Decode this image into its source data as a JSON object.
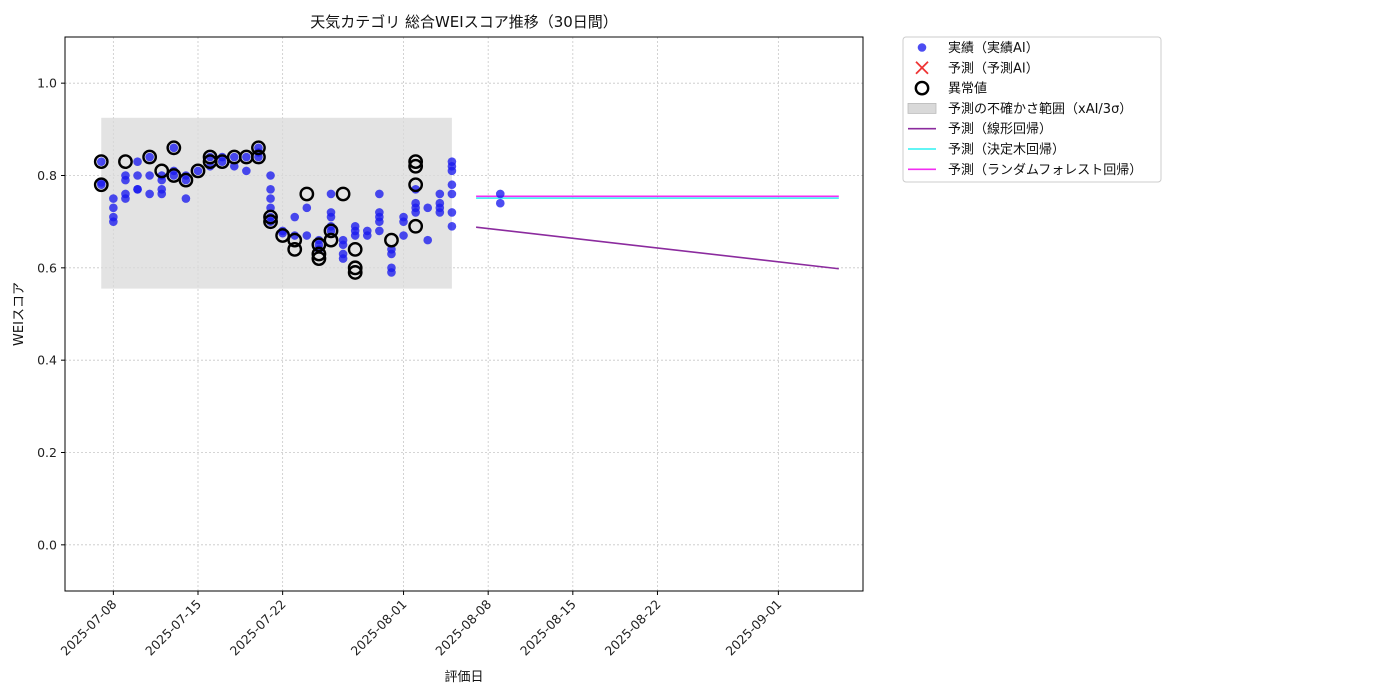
{
  "chart_data": {
    "type": "scatter",
    "title": "天気カテゴリ 総合WEIスコア推移（30日間）",
    "xlabel": "評価日",
    "ylabel": "WEIスコア",
    "xlim": [
      "2025-07-04",
      "2025-09-08"
    ],
    "ylim": [
      -0.1,
      1.1
    ],
    "x_ticks": [
      "2025-07-08",
      "2025-07-15",
      "2025-07-22",
      "2025-08-01",
      "2025-08-08",
      "2025-08-15",
      "2025-08-22",
      "2025-09-01"
    ],
    "y_ticks": [
      0.0,
      0.2,
      0.4,
      0.6,
      0.8,
      1.0
    ],
    "y_tick_labels": [
      "0.0",
      "0.2",
      "0.4",
      "0.6",
      "0.8",
      "1.0"
    ],
    "grid": true,
    "legend_position": "outside-right-top",
    "colors": {
      "actual": "#1a1aee",
      "predicted": "#ee3333",
      "outlier": "#000000",
      "band": "#d9d9d9",
      "linear": "#8b2b9e",
      "tree": "#2ef2f2",
      "forest": "#f22ef2"
    },
    "legend": [
      {
        "key": "actual",
        "label": "実績（実績AI）",
        "marker": "dot"
      },
      {
        "key": "predicted",
        "label": "予測（予測AI）",
        "marker": "cross"
      },
      {
        "key": "outlier",
        "label": "異常値",
        "marker": "ring"
      },
      {
        "key": "band",
        "label": "予測の不確かさ範囲（xAI/3σ）",
        "marker": "patch"
      },
      {
        "key": "linear",
        "label": "予測（線形回帰）",
        "marker": "line"
      },
      {
        "key": "tree",
        "label": "予測（決定木回帰）",
        "marker": "line"
      },
      {
        "key": "forest",
        "label": "予測（ランダムフォレスト回帰）",
        "marker": "line"
      }
    ],
    "uncertainty_band": {
      "x_start": "2025-07-07",
      "x_end": "2025-08-05",
      "y_low": 0.555,
      "y_high": 0.925
    },
    "series": [
      {
        "name": "実績（実績AI）",
        "kind": "scatter",
        "points": [
          [
            "2025-07-07",
            0.78
          ],
          [
            "2025-07-07",
            0.785
          ],
          [
            "2025-07-07",
            0.83
          ],
          [
            "2025-07-08",
            0.75
          ],
          [
            "2025-07-08",
            0.7
          ],
          [
            "2025-07-08",
            0.71
          ],
          [
            "2025-07-08",
            0.73
          ],
          [
            "2025-07-09",
            0.79
          ],
          [
            "2025-07-09",
            0.8
          ],
          [
            "2025-07-09",
            0.75
          ],
          [
            "2025-07-09",
            0.76
          ],
          [
            "2025-07-10",
            0.77
          ],
          [
            "2025-07-10",
            0.8
          ],
          [
            "2025-07-10",
            0.83
          ],
          [
            "2025-07-10",
            0.77
          ],
          [
            "2025-07-11",
            0.76
          ],
          [
            "2025-07-11",
            0.8
          ],
          [
            "2025-07-11",
            0.84
          ],
          [
            "2025-07-12",
            0.77
          ],
          [
            "2025-07-12",
            0.76
          ],
          [
            "2025-07-12",
            0.79
          ],
          [
            "2025-07-12",
            0.8
          ],
          [
            "2025-07-13",
            0.81
          ],
          [
            "2025-07-13",
            0.86
          ],
          [
            "2025-07-13",
            0.8
          ],
          [
            "2025-07-14",
            0.75
          ],
          [
            "2025-07-14",
            0.79
          ],
          [
            "2025-07-14",
            0.8
          ],
          [
            "2025-07-15",
            0.81
          ],
          [
            "2025-07-16",
            0.82
          ],
          [
            "2025-07-16",
            0.84
          ],
          [
            "2025-07-17",
            0.83
          ],
          [
            "2025-07-17",
            0.84
          ],
          [
            "2025-07-18",
            0.82
          ],
          [
            "2025-07-18",
            0.84
          ],
          [
            "2025-07-19",
            0.84
          ],
          [
            "2025-07-19",
            0.81
          ],
          [
            "2025-07-20",
            0.84
          ],
          [
            "2025-07-20",
            0.86
          ],
          [
            "2025-07-20",
            0.85
          ],
          [
            "2025-07-21",
            0.8
          ],
          [
            "2025-07-21",
            0.77
          ],
          [
            "2025-07-21",
            0.75
          ],
          [
            "2025-07-21",
            0.73
          ],
          [
            "2025-07-21",
            0.71
          ],
          [
            "2025-07-21",
            0.7
          ],
          [
            "2025-07-22",
            0.675
          ],
          [
            "2025-07-22",
            0.68
          ],
          [
            "2025-07-23",
            0.71
          ],
          [
            "2025-07-23",
            0.67
          ],
          [
            "2025-07-24",
            0.73
          ],
          [
            "2025-07-24",
            0.67
          ],
          [
            "2025-07-25",
            0.65
          ],
          [
            "2025-07-25",
            0.64
          ],
          [
            "2025-07-25",
            0.66
          ],
          [
            "2025-07-26",
            0.68
          ],
          [
            "2025-07-26",
            0.69
          ],
          [
            "2025-07-26",
            0.71
          ],
          [
            "2025-07-26",
            0.72
          ],
          [
            "2025-07-26",
            0.76
          ],
          [
            "2025-07-27",
            0.62
          ],
          [
            "2025-07-27",
            0.63
          ],
          [
            "2025-07-27",
            0.65
          ],
          [
            "2025-07-27",
            0.66
          ],
          [
            "2025-07-28",
            0.67
          ],
          [
            "2025-07-28",
            0.68
          ],
          [
            "2025-07-28",
            0.69
          ],
          [
            "2025-07-29",
            0.68
          ],
          [
            "2025-07-29",
            0.67
          ],
          [
            "2025-07-30",
            0.68
          ],
          [
            "2025-07-30",
            0.7
          ],
          [
            "2025-07-30",
            0.71
          ],
          [
            "2025-07-30",
            0.72
          ],
          [
            "2025-07-30",
            0.76
          ],
          [
            "2025-07-31",
            0.6
          ],
          [
            "2025-07-31",
            0.59
          ],
          [
            "2025-07-31",
            0.63
          ],
          [
            "2025-07-31",
            0.64
          ],
          [
            "2025-08-01",
            0.67
          ],
          [
            "2025-08-01",
            0.7
          ],
          [
            "2025-08-01",
            0.71
          ],
          [
            "2025-08-02",
            0.72
          ],
          [
            "2025-08-02",
            0.73
          ],
          [
            "2025-08-02",
            0.74
          ],
          [
            "2025-08-02",
            0.77
          ],
          [
            "2025-08-03",
            0.66
          ],
          [
            "2025-08-03",
            0.73
          ],
          [
            "2025-08-04",
            0.72
          ],
          [
            "2025-08-04",
            0.73
          ],
          [
            "2025-08-04",
            0.74
          ],
          [
            "2025-08-04",
            0.76
          ],
          [
            "2025-08-05",
            0.69
          ],
          [
            "2025-08-05",
            0.72
          ],
          [
            "2025-08-05",
            0.76
          ],
          [
            "2025-08-05",
            0.78
          ],
          [
            "2025-08-05",
            0.81
          ],
          [
            "2025-08-05",
            0.82
          ],
          [
            "2025-08-05",
            0.83
          ],
          [
            "2025-08-09",
            0.76
          ],
          [
            "2025-08-09",
            0.74
          ]
        ]
      },
      {
        "name": "異常値",
        "kind": "outlier",
        "points": [
          [
            "2025-07-07",
            0.78
          ],
          [
            "2025-07-07",
            0.83
          ],
          [
            "2025-07-09",
            0.83
          ],
          [
            "2025-07-11",
            0.84
          ],
          [
            "2025-07-12",
            0.81
          ],
          [
            "2025-07-13",
            0.86
          ],
          [
            "2025-07-13",
            0.8
          ],
          [
            "2025-07-14",
            0.79
          ],
          [
            "2025-07-15",
            0.81
          ],
          [
            "2025-07-16",
            0.84
          ],
          [
            "2025-07-16",
            0.83
          ],
          [
            "2025-07-17",
            0.83
          ],
          [
            "2025-07-18",
            0.84
          ],
          [
            "2025-07-19",
            0.84
          ],
          [
            "2025-07-20",
            0.86
          ],
          [
            "2025-07-20",
            0.84
          ],
          [
            "2025-07-21",
            0.71
          ],
          [
            "2025-07-21",
            0.7
          ],
          [
            "2025-07-22",
            0.67
          ],
          [
            "2025-07-23",
            0.66
          ],
          [
            "2025-07-23",
            0.64
          ],
          [
            "2025-07-24",
            0.76
          ],
          [
            "2025-07-25",
            0.62
          ],
          [
            "2025-07-25",
            0.63
          ],
          [
            "2025-07-25",
            0.65
          ],
          [
            "2025-07-26",
            0.66
          ],
          [
            "2025-07-26",
            0.68
          ],
          [
            "2025-07-27",
            0.76
          ],
          [
            "2025-07-28",
            0.6
          ],
          [
            "2025-07-28",
            0.59
          ],
          [
            "2025-07-28",
            0.64
          ],
          [
            "2025-07-31",
            0.66
          ],
          [
            "2025-08-02",
            0.82
          ],
          [
            "2025-08-02",
            0.83
          ],
          [
            "2025-08-02",
            0.78
          ],
          [
            "2025-08-02",
            0.69
          ]
        ]
      },
      {
        "name": "予測（線形回帰）",
        "kind": "line",
        "color_key": "linear",
        "points": [
          [
            "2025-08-07",
            0.688
          ],
          [
            "2025-09-06",
            0.598
          ]
        ]
      },
      {
        "name": "予測（決定木回帰）",
        "kind": "line",
        "color_key": "tree",
        "points": [
          [
            "2025-08-07",
            0.751
          ],
          [
            "2025-09-06",
            0.751
          ]
        ]
      },
      {
        "name": "予測（ランダムフォレスト回帰）",
        "kind": "line",
        "color_key": "forest",
        "points": [
          [
            "2025-08-07",
            0.755
          ],
          [
            "2025-09-06",
            0.755
          ]
        ]
      }
    ]
  }
}
